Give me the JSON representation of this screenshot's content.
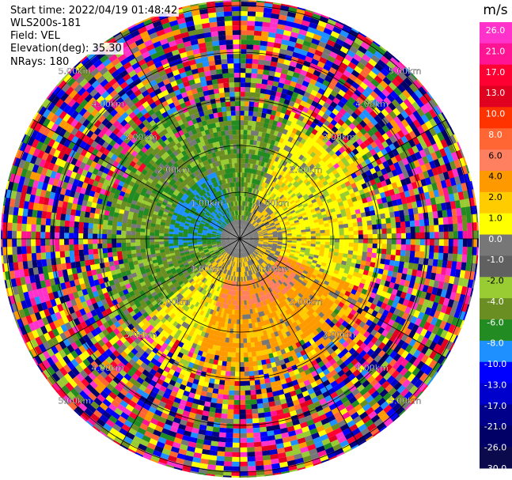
{
  "header": {
    "start_time": "Start time: 2022/04/19 01:48:42",
    "instrument": "WLS200s-181",
    "field": "Field: VEL",
    "elevation": "Elevation(deg): 35.30",
    "nrays": "NRays: 180"
  },
  "colorbar": {
    "unit": "m/s",
    "ticks": [
      "26.0",
      "21.0",
      "17.0",
      "13.0",
      "10.0",
      "8.0",
      "6.0",
      "4.0",
      "2.0",
      "1.0",
      "0.0",
      "-1.0",
      "-2.0",
      "-4.0",
      "-6.0",
      "-8.0",
      "-10.0",
      "-13.0",
      "-17.0",
      "-21.0",
      "-26.0",
      "-30.0"
    ],
    "colors": [
      "#ff33cc",
      "#ff1493",
      "#ff0033",
      "#e0001f",
      "#ff3300",
      "#ff6633",
      "#ff8060",
      "#ff9900",
      "#ffcc00",
      "#ffff00",
      "#777777",
      "#606060",
      "#99cc33",
      "#6b8e23",
      "#228b22",
      "#1e90ff",
      "#0000ff",
      "#0000cc",
      "#00008b",
      "#000066",
      "#0a0a4d"
    ]
  },
  "chart_data": {
    "type": "heatmap",
    "projection": "polar-ppi",
    "field": "VEL",
    "units": "m/s",
    "nrays": 180,
    "elevation_deg": 35.3,
    "range_rings_km": [
      1.0,
      2.0,
      3.0,
      4.0,
      5.0
    ],
    "ring_labels": [
      "1.00km",
      "2.00km",
      "3.00km",
      "4.00km",
      "5.00km"
    ],
    "max_range_km": 5.2,
    "spokes_deg": [
      0,
      30,
      60,
      90,
      120,
      150,
      180,
      210,
      240,
      270,
      300,
      330
    ],
    "vmin": -30.0,
    "vmax": 30.0
  }
}
